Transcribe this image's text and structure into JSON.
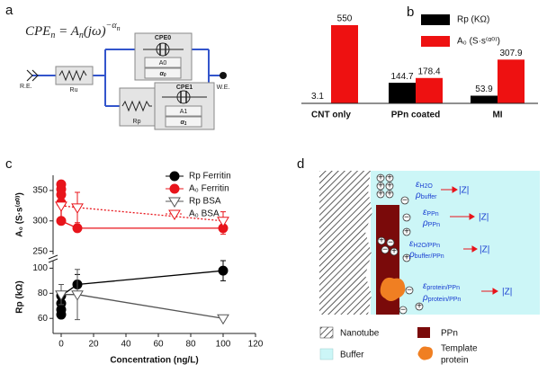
{
  "panel_labels": [
    "a",
    "b",
    "c",
    "d"
  ],
  "circuit": {
    "equation": [
      "CPE",
      "n",
      " = A",
      "n",
      "(jω)",
      "−α",
      "n"
    ],
    "re": "R.E.",
    "ru": "Ru",
    "cpe0": "CPE0",
    "a0": "A0",
    "alpha": "α",
    "alpha0_sub": "0",
    "rp": "Rp",
    "cpe1": "CPE1",
    "a1": "A1",
    "alpha1_sub": "1",
    "we": "W.E."
  },
  "chart_data": [
    {
      "type": "bar",
      "categories": [
        "CNT only",
        "PPn coated",
        "MI"
      ],
      "series": [
        {
          "name": "Rp (KΩ)",
          "color": "#000000",
          "values": [
            3.1,
            144.7,
            53.9
          ]
        },
        {
          "name": "A₀ (S·s⁽ᵅ⁰⁾)",
          "color": "#ee1111",
          "values": [
            550,
            178.4,
            307.9
          ]
        }
      ]
    },
    {
      "type": "line",
      "ylabel": "A₀ (S·s⁽ᵅ⁰⁾)",
      "ylim": [
        245,
        375
      ],
      "yticks": [
        250,
        300,
        350
      ],
      "xlim": [
        -5,
        120
      ],
      "series": [
        {
          "name": "A₀ Ferritin",
          "color": "#e8141b",
          "marker": "circle",
          "filled": true,
          "linestyle": "solid",
          "x": [
            0,
            0,
            0,
            0,
            0,
            10,
            100
          ],
          "values": [
            360,
            352,
            343,
            330,
            300,
            288,
            288
          ],
          "errors": [
            null,
            null,
            null,
            null,
            null,
            null,
            10
          ]
        },
        {
          "name": "A₀ BSA",
          "color": "#e8141b",
          "marker": "triangle-down",
          "filled": false,
          "linestyle": "dotted",
          "x": [
            0,
            10,
            100
          ],
          "values": [
            325,
            322,
            300
          ],
          "errors": [
            25,
            25,
            15
          ]
        }
      ]
    },
    {
      "type": "line",
      "ylabel": "Rp (kΩ)",
      "xlabel": "Concentration (ng/L)",
      "ylim": [
        48,
        106
      ],
      "yticks": [
        60,
        80,
        100
      ],
      "xlim": [
        -5,
        120
      ],
      "xticks": [
        0,
        20,
        40,
        60,
        80,
        100,
        120
      ],
      "series": [
        {
          "name": "Rp Ferritin",
          "color": "#000000",
          "marker": "circle",
          "filled": true,
          "linestyle": "solid",
          "x": [
            0,
            0,
            0,
            0,
            10,
            100
          ],
          "values": [
            63,
            67,
            72,
            78,
            87,
            98
          ],
          "errors": [
            null,
            null,
            null,
            null,
            8,
            8
          ]
        },
        {
          "name": "Rp BSA",
          "color": "#555555",
          "marker": "triangle-down",
          "filled": false,
          "linestyle": "solid",
          "x": [
            0,
            10,
            100
          ],
          "values": [
            79,
            79,
            60
          ],
          "errors": [
            8,
            20,
            null
          ]
        }
      ]
    }
  ],
  "schematic": {
    "eps_symbol": "ε",
    "rho_symbol": "ρ",
    "labels": [
      {
        "eps": "H2O",
        "rho": "buffer",
        "z": "|Z|"
      },
      {
        "eps": "PPn",
        "rho": "PPn",
        "z": "|Z|"
      },
      {
        "eps": "H2O/PPn",
        "rho": "buffer/PPn",
        "z": "|Z|"
      },
      {
        "eps": "protein/PPn",
        "rho": "protein/PPn",
        "z": "|Z|"
      }
    ],
    "legend": [
      "Nanotube",
      "PPn",
      "Buffer",
      [
        "Template",
        "protein"
      ]
    ]
  }
}
